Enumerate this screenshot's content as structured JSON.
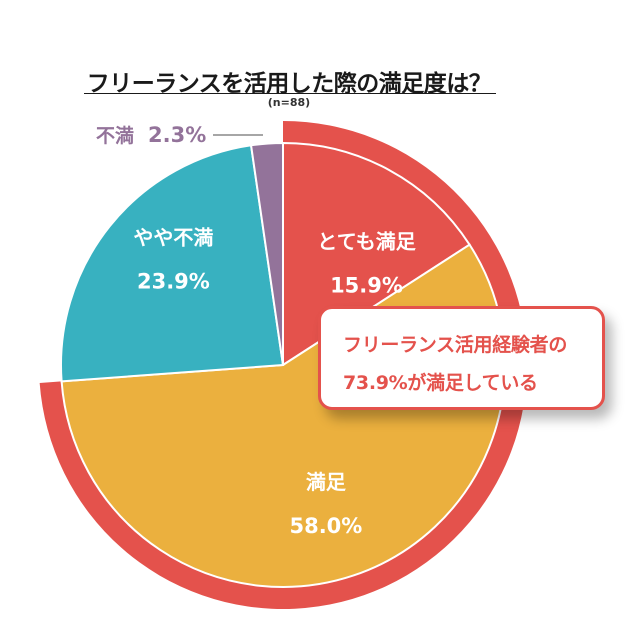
{
  "title": "フリーランスを活用した際の満足度は？",
  "sample_note": "(n=88)",
  "callout": {
    "line1": "フリーランス活用経験者の",
    "line2": "73.9%が満足している"
  },
  "colors": {
    "ring": "#e4524c",
    "very_satisfied": "#e4524c",
    "satisfied": "#ebb03e",
    "somewhat_dissatisfied": "#38b1c0",
    "dissatisfied": "#93739a"
  },
  "chart_data": {
    "type": "pie",
    "title": "フリーランスを活用した際の満足度は？",
    "note": "(n=88)",
    "start": "12 o'clock",
    "direction": "clockwise",
    "slices": [
      {
        "label": "とても満足",
        "value": 15.9,
        "display": "15.9%",
        "color": "#e4524c"
      },
      {
        "label": "満足",
        "value": 58.0,
        "display": "58.0%",
        "color": "#ebb03e"
      },
      {
        "label": "やや不満",
        "value": 23.9,
        "display": "23.9%",
        "color": "#38b1c0"
      },
      {
        "label": "不満",
        "value": 2.3,
        "display": "2.3%",
        "color": "#93739a"
      }
    ],
    "highlight_ring": {
      "covers": [
        "とても満足",
        "満足"
      ],
      "value": 73.9,
      "color": "#e4524c"
    }
  }
}
